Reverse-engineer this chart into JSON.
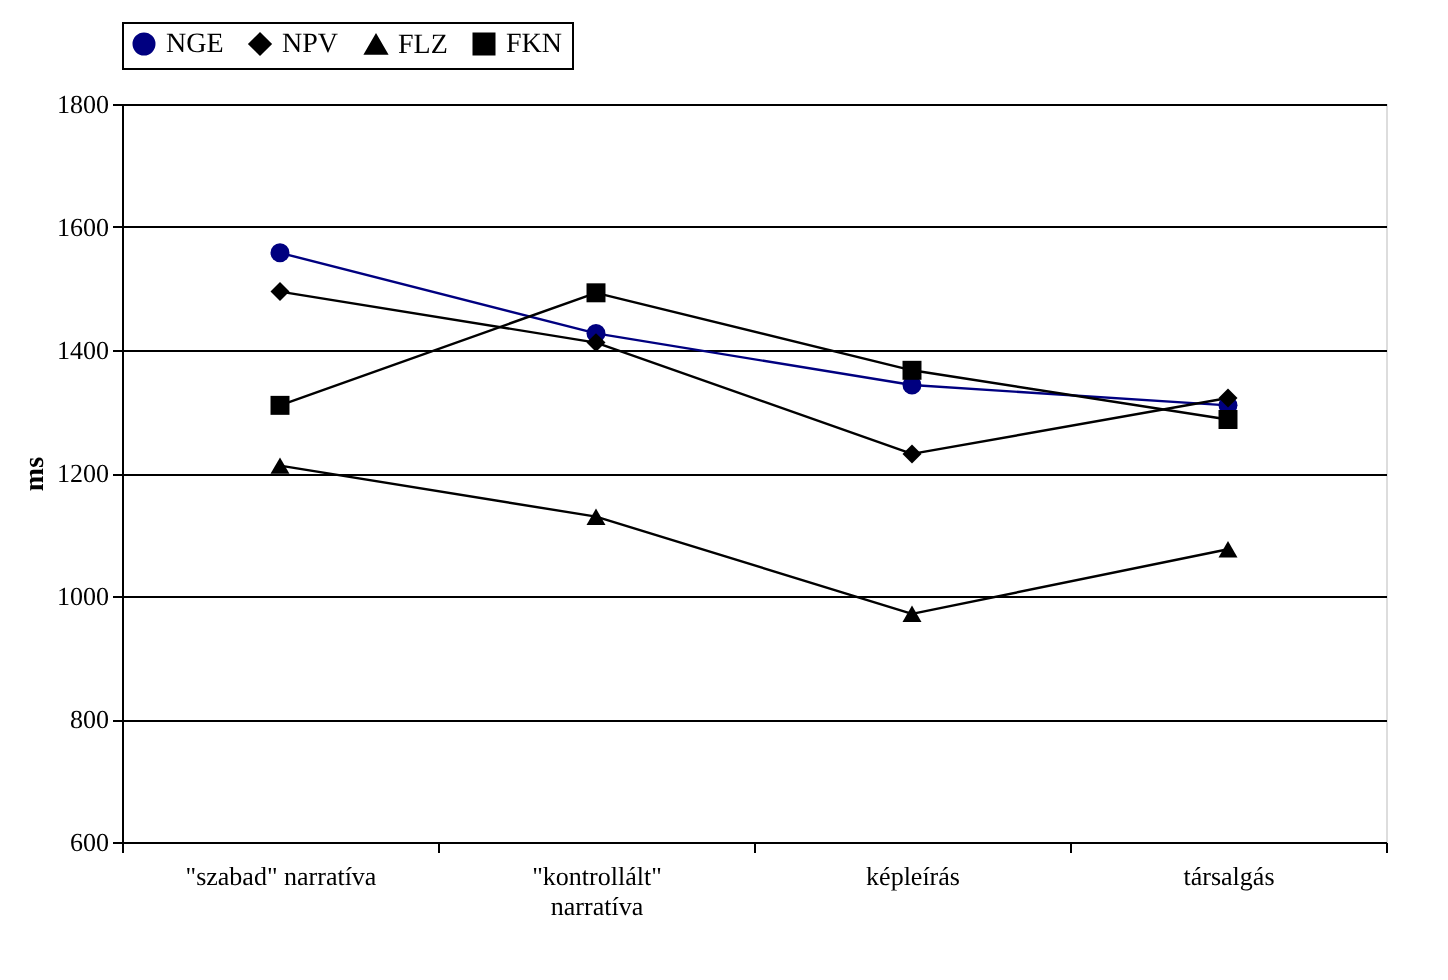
{
  "chart_data": {
    "type": "line",
    "ylabel": "ms",
    "categories": [
      "\"szabad\" narratíva",
      "\"kontrollált\"\nnarratíva",
      "képleírás",
      "társalgás"
    ],
    "series": [
      {
        "name": "NGE",
        "color": "#000080",
        "marker": "circle",
        "values": [
          1558,
          1427,
          1343,
          1310
        ]
      },
      {
        "name": "NPV",
        "color": "#000000",
        "marker": "diamond",
        "values": [
          1495,
          1412,
          1231,
          1322
        ]
      },
      {
        "name": "FLZ",
        "color": "#000000",
        "marker": "triangle",
        "values": [
          1212,
          1129,
          971,
          1076
        ]
      },
      {
        "name": "FKN",
        "color": "#000000",
        "marker": "square",
        "values": [
          1310,
          1493,
          1367,
          1287
        ]
      }
    ],
    "ylim": [
      600,
      1800
    ],
    "yticks": [
      600,
      800,
      1000,
      1200,
      1400,
      1600,
      1800
    ],
    "grid": "y",
    "legend": "top"
  }
}
